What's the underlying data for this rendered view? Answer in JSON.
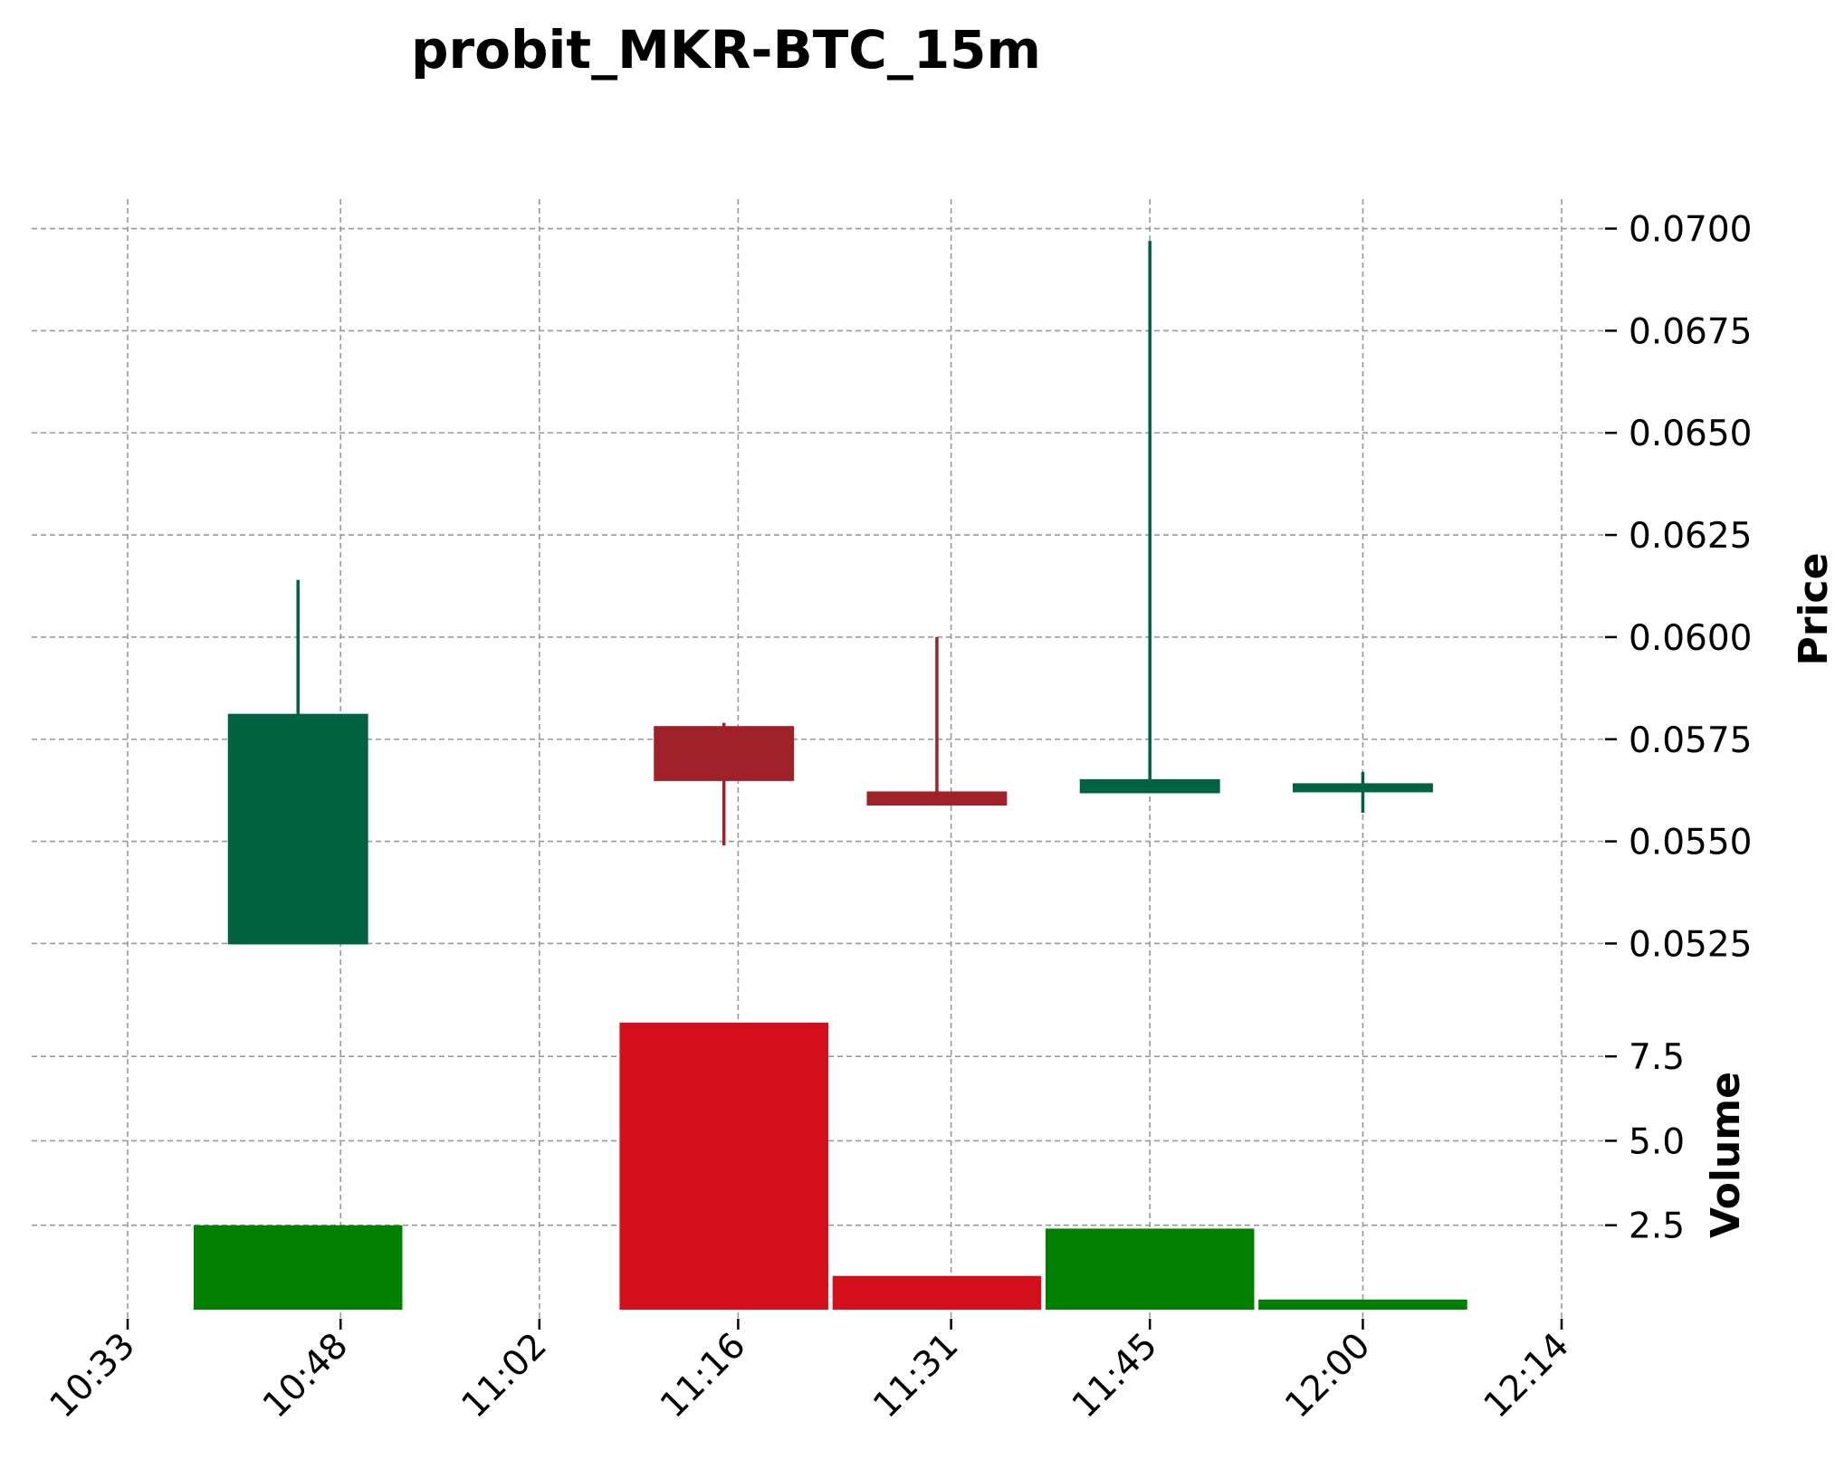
{
  "chart_data": {
    "type": "candlestick",
    "title": "probit_MKR-BTC_15m",
    "colors": {
      "up": "#006340",
      "down": "#a02128",
      "volume_up": "#007f00",
      "volume_down": "#d20f1b",
      "grid": "#999999"
    },
    "price_axis": {
      "label": "Price",
      "ticks": [
        0.0525,
        0.055,
        0.0575,
        0.06,
        0.0625,
        0.065,
        0.0675,
        0.07
      ],
      "tick_labels": [
        "0.0525",
        "0.0550",
        "0.0575",
        "0.0600",
        "0.0625",
        "0.0650",
        "0.0675",
        "0.0700"
      ],
      "ylim": [
        0.052,
        0.0705
      ]
    },
    "volume_axis": {
      "label": "Volume",
      "ticks": [
        2.5,
        5.0,
        7.5
      ],
      "tick_labels": [
        "2.5",
        "5.0",
        "7.5"
      ],
      "ylim": [
        0,
        9.3
      ]
    },
    "x_axis": {
      "ticks": [
        "10:33",
        "10:48",
        "11:02",
        "11:16",
        "11:31",
        "11:45",
        "12:00",
        "12:14"
      ]
    },
    "candles": [
      {
        "time": "10:45",
        "open": 0.0525,
        "high": 0.0614,
        "low": 0.0525,
        "close": 0.0581,
        "volume": 2.5
      },
      {
        "time": "11:15",
        "open": 0.0578,
        "high": 0.0579,
        "low": 0.0549,
        "close": 0.0565,
        "volume": 8.5
      },
      {
        "time": "11:30",
        "open": 0.0562,
        "high": 0.06,
        "low": 0.0559,
        "close": 0.0559,
        "volume": 1.0
      },
      {
        "time": "11:45",
        "open": 0.0562,
        "high": 0.0697,
        "low": 0.0562,
        "close": 0.0565,
        "volume": 2.4
      },
      {
        "time": "12:00",
        "open": 0.0564,
        "high": 0.0567,
        "low": 0.0557,
        "close": 0.0564,
        "volume": 0.3
      }
    ]
  }
}
